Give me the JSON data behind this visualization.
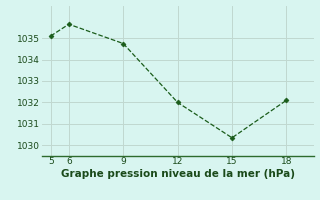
{
  "x": [
    5,
    6,
    9,
    12,
    15,
    18
  ],
  "y": [
    1035.1,
    1035.65,
    1034.75,
    1032.0,
    1030.35,
    1032.1
  ],
  "xlim": [
    4.5,
    19.5
  ],
  "ylim": [
    1029.5,
    1036.5
  ],
  "xticks": [
    5,
    6,
    9,
    12,
    15,
    18
  ],
  "yticks": [
    1030,
    1031,
    1032,
    1033,
    1034,
    1035
  ],
  "xlabel": "Graphe pression niveau de la mer (hPa)",
  "line_color": "#1a5c1a",
  "marker": "D",
  "marker_size": 2.5,
  "bg_color": "#d8f5f0",
  "grid_color": "#c0d8d0",
  "tick_label_color": "#1a4a1a",
  "xlabel_color": "#1a4a1a",
  "tick_fontsize": 6.5,
  "xlabel_fontsize": 7.5,
  "border_color": "#2d6b2d"
}
